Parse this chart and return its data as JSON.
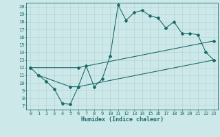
{
  "bg_color": "#cde8e8",
  "line_color": "#1a6b6b",
  "grid_color": "#b0cfcf",
  "xlabel": "Humidex (Indice chaleur)",
  "xlim": [
    -0.5,
    23.5
  ],
  "ylim": [
    6.5,
    20.5
  ],
  "xticks": [
    0,
    1,
    2,
    3,
    4,
    5,
    6,
    7,
    8,
    9,
    10,
    11,
    12,
    13,
    14,
    15,
    16,
    17,
    18,
    19,
    20,
    21,
    22,
    23
  ],
  "yticks": [
    7,
    8,
    9,
    10,
    11,
    12,
    13,
    14,
    15,
    16,
    17,
    18,
    19,
    20
  ],
  "line1_x": [
    0,
    1,
    2,
    3,
    4,
    5,
    6,
    7,
    8,
    9,
    10,
    11,
    12,
    13,
    14,
    15,
    16,
    17,
    18,
    19,
    20,
    21,
    22,
    23
  ],
  "line1_y": [
    12,
    11,
    10.2,
    9.2,
    7.3,
    7.2,
    9.5,
    12.2,
    9.5,
    10.5,
    13.5,
    20.2,
    18.2,
    19.2,
    19.5,
    18.8,
    18.5,
    17.2,
    18.0,
    16.5,
    16.5,
    16.3,
    14.0,
    13.0
  ],
  "line2_x": [
    1,
    5,
    6,
    23
  ],
  "line2_y": [
    11,
    9.5,
    9.5,
    13.0
  ],
  "line3_x": [
    0,
    6,
    23
  ],
  "line3_y": [
    12,
    12.0,
    15.5
  ],
  "marker_size": 2.0,
  "line_width": 0.8,
  "tick_fontsize": 5.0,
  "xlabel_fontsize": 6.0
}
